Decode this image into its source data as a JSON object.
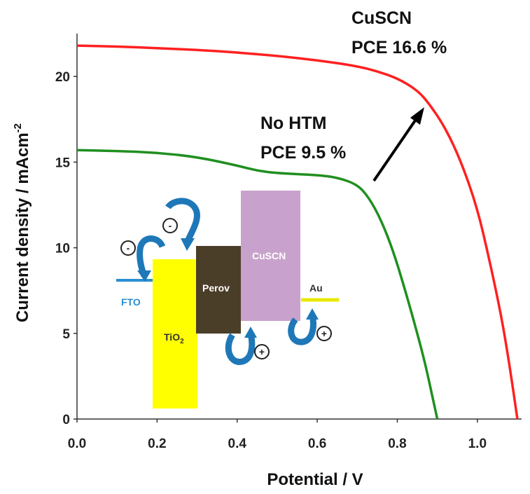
{
  "chart_data": {
    "type": "line",
    "xlabel": "Potential / V",
    "ylabel": "Current density / mAcm",
    "ylabel_sup": "-2",
    "xlim": [
      0.0,
      1.12
    ],
    "ylim": [
      0,
      22.5
    ],
    "x_ticks": [
      "0.0",
      "0.2",
      "0.4",
      "0.6",
      "0.8",
      "1.0"
    ],
    "x_tick_values": [
      0.0,
      0.2,
      0.4,
      0.6,
      0.8,
      1.0
    ],
    "y_ticks": [
      "0",
      "5",
      "10",
      "15",
      "20"
    ],
    "y_tick_values": [
      0,
      5,
      10,
      15,
      20
    ],
    "series": [
      {
        "name": "CuSCN",
        "annotation": [
          "CuSCN",
          "PCE 16.6 %"
        ],
        "color": "#ff2020",
        "points": [
          [
            0.0,
            21.8
          ],
          [
            0.1,
            21.75
          ],
          [
            0.2,
            21.65
          ],
          [
            0.3,
            21.55
          ],
          [
            0.4,
            21.4
          ],
          [
            0.5,
            21.2
          ],
          [
            0.6,
            20.95
          ],
          [
            0.7,
            20.6
          ],
          [
            0.75,
            20.3
          ],
          [
            0.8,
            19.9
          ],
          [
            0.85,
            19.2
          ],
          [
            0.88,
            18.4
          ],
          [
            0.92,
            17.0
          ],
          [
            0.96,
            15.0
          ],
          [
            1.0,
            12.3
          ],
          [
            1.03,
            9.3
          ],
          [
            1.06,
            6.0
          ],
          [
            1.08,
            3.2
          ],
          [
            1.1,
            0.0
          ]
        ]
      },
      {
        "name": "No HTM",
        "annotation": [
          "No HTM",
          "PCE 9.5 %"
        ],
        "color": "#1f8f1f",
        "points": [
          [
            0.0,
            15.7
          ],
          [
            0.1,
            15.65
          ],
          [
            0.2,
            15.55
          ],
          [
            0.3,
            15.3
          ],
          [
            0.4,
            14.8
          ],
          [
            0.45,
            14.5
          ],
          [
            0.5,
            14.35
          ],
          [
            0.6,
            14.25
          ],
          [
            0.65,
            14.1
          ],
          [
            0.7,
            13.7
          ],
          [
            0.73,
            12.9
          ],
          [
            0.76,
            11.6
          ],
          [
            0.79,
            9.8
          ],
          [
            0.82,
            7.5
          ],
          [
            0.85,
            5.0
          ],
          [
            0.87,
            3.2
          ],
          [
            0.885,
            1.6
          ],
          [
            0.9,
            0.0
          ]
        ]
      }
    ]
  },
  "inset": {
    "fto_label": "FTO",
    "tio2_label": "TiO",
    "tio2_sub": "2",
    "perov_label": "Perov",
    "cuscn_label": "CuSCN",
    "au_label": "Au",
    "minus_sign": "-",
    "plus_sign": "+",
    "colors": {
      "tio2": "#ffff00",
      "perov": "#4a3e28",
      "cuscn": "#c8a2cc",
      "au": "#e8e800",
      "fto": "#2b8fd4",
      "arrow": "#1e78b8"
    }
  }
}
